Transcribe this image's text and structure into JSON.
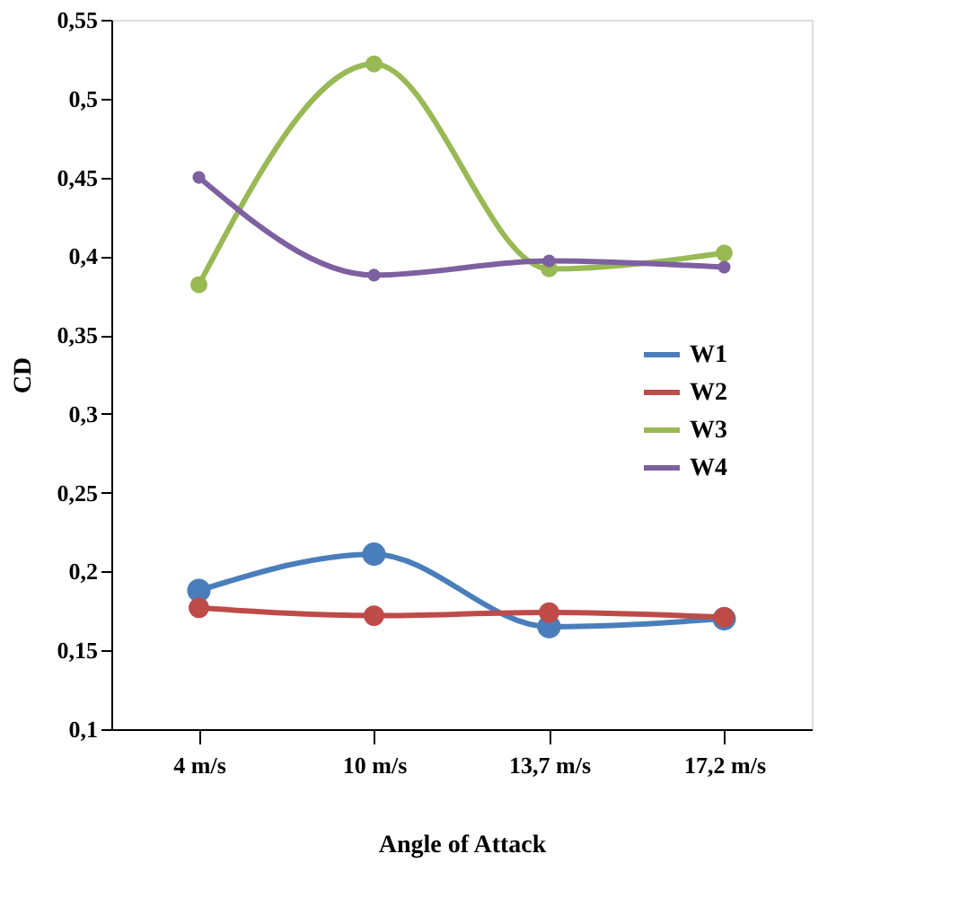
{
  "chart_data": {
    "type": "line",
    "xlabel": "Angle of Attack",
    "ylabel": "CD",
    "categories": [
      "4 m/s",
      "10 m/s",
      "13,7 m/s",
      "17,2 m/s"
    ],
    "series": [
      {
        "name": "W1",
        "color": "#4a7ebb",
        "values": [
          0.188,
          0.211,
          0.165,
          0.17
        ]
      },
      {
        "name": "W2",
        "color": "#be4b48",
        "values": [
          0.177,
          0.172,
          0.174,
          0.171
        ]
      },
      {
        "name": "W3",
        "color": "#98b954",
        "values": [
          0.382,
          0.522,
          0.392,
          0.402
        ]
      },
      {
        "name": "W4",
        "color": "#7d60a0",
        "values": [
          0.45,
          0.388,
          0.397,
          0.393
        ]
      }
    ],
    "ylim": [
      0.1,
      0.55
    ],
    "yticks": [
      {
        "value": 0.1,
        "label": "0,1"
      },
      {
        "value": 0.15,
        "label": "0,15"
      },
      {
        "value": 0.2,
        "label": "0,2"
      },
      {
        "value": 0.25,
        "label": "0,25"
      },
      {
        "value": 0.3,
        "label": "0,3"
      },
      {
        "value": 0.35,
        "label": "0,35"
      },
      {
        "value": 0.4,
        "label": "0,4"
      },
      {
        "value": 0.45,
        "label": "0,45"
      },
      {
        "value": 0.5,
        "label": "0,5"
      },
      {
        "value": 0.55,
        "label": "0,55"
      }
    ],
    "grid": false,
    "legend": "right",
    "marker": "circle",
    "line_style": "solid"
  }
}
